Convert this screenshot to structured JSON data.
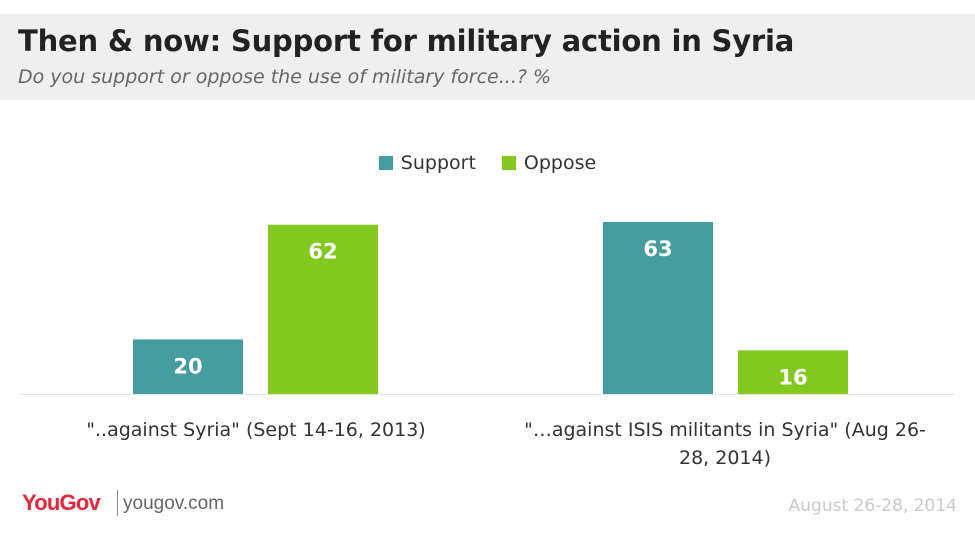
{
  "header": {
    "title": "Then & now: Support for military action in Syria",
    "subtitle": "Do you support or oppose the use of military force...? %"
  },
  "chart_data": {
    "type": "bar",
    "title": "Then & now: Support for military action in Syria",
    "subtitle": "Do you support or oppose the use of military force...? %",
    "categories": [
      "\"..against Syria\" (Sept 14-16, 2013)",
      "\"…against ISIS militants in Syria\" (Aug 26-28, 2014)"
    ],
    "series": [
      {
        "name": "Support",
        "color": "#459d9f",
        "values": [
          20,
          63
        ]
      },
      {
        "name": "Oppose",
        "color": "#83c81e",
        "values": [
          62,
          16
        ]
      }
    ],
    "ylim": [
      0,
      70
    ],
    "grid": false,
    "legend_position": "top-center"
  },
  "footer": {
    "brand": "YouGov",
    "site": "yougov.com",
    "date": "August 26-28, 2014"
  },
  "colors": {
    "support": "#459d9f",
    "oppose": "#83c81e",
    "brand": "#e6263a",
    "header_bg": "#efefef"
  }
}
